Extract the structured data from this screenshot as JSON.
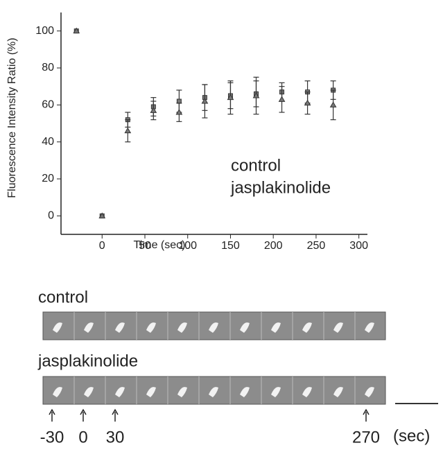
{
  "chart_data": {
    "type": "scatter",
    "y_label": "Fluorescence Intensity Ratio (%)",
    "x_label": "Time (sec)",
    "x": [
      -30,
      0,
      30,
      60,
      90,
      120,
      150,
      180,
      210,
      240,
      270
    ],
    "series": [
      {
        "name": "control",
        "color": "#777777",
        "marker": "square",
        "values": [
          100,
          0,
          52,
          59,
          62,
          64,
          65,
          66,
          67,
          67,
          68
        ],
        "errors": [
          0,
          0,
          4,
          5,
          6,
          7,
          7,
          7,
          5,
          6,
          5
        ]
      },
      {
        "name": "jasplakinolide",
        "color": "#777777",
        "marker": "triangle",
        "values": [
          100,
          0,
          46,
          57,
          56,
          62,
          64,
          65,
          63,
          61,
          60
        ],
        "errors": [
          0,
          0,
          6,
          5,
          5,
          9,
          9,
          10,
          7,
          6,
          8
        ]
      }
    ],
    "xlim": [
      -48,
      310
    ],
    "ylim": [
      -10,
      110
    ],
    "xticks": [
      0,
      50,
      100,
      150,
      200,
      250,
      300
    ],
    "yticks": [
      0,
      20,
      40,
      60,
      80,
      100
    ]
  },
  "figure": {
    "strip_labels": [
      "control",
      "jasplakinolide"
    ],
    "time_labels": [
      "-30",
      "0",
      "30",
      "270"
    ],
    "time_unit": "(sec)"
  }
}
